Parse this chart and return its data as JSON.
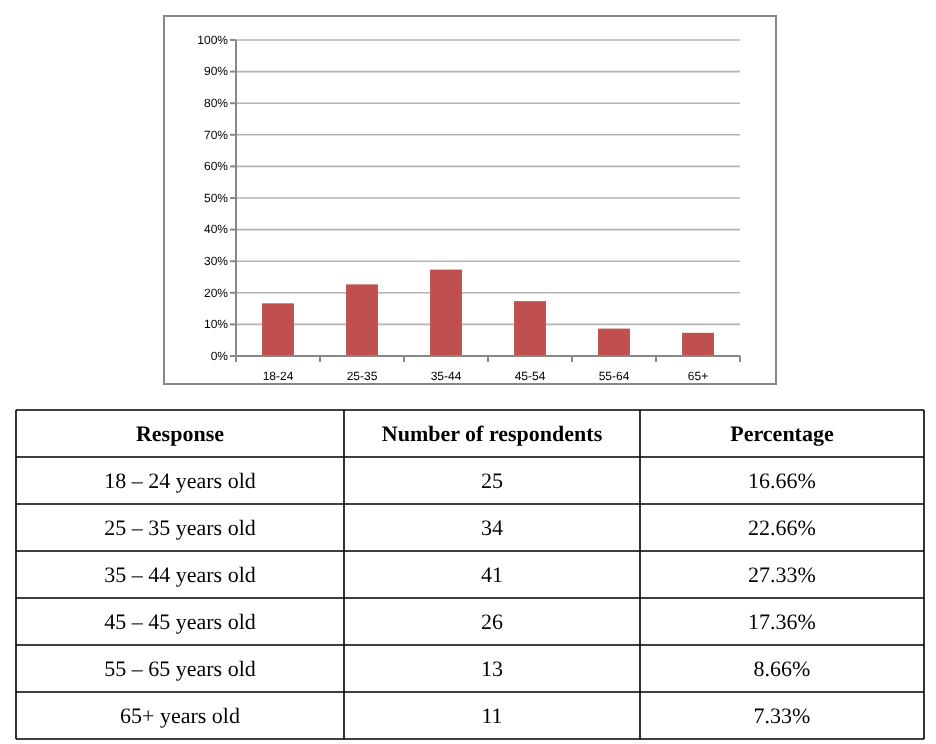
{
  "chart_data": [
    {
      "type": "bar",
      "categories": [
        "18-24",
        "25-35",
        "35-44",
        "45-54",
        "55-64",
        "65+"
      ],
      "values": [
        16.66,
        22.66,
        27.33,
        17.36,
        8.66,
        7.33
      ],
      "color": "#c0504d",
      "ylim": [
        0,
        100
      ],
      "yticks": [
        {
          "value": 0,
          "label": "0%"
        },
        {
          "value": 10,
          "label": "10%"
        },
        {
          "value": 20,
          "label": "20%"
        },
        {
          "value": 30,
          "label": "30%"
        },
        {
          "value": 40,
          "label": "40%"
        },
        {
          "value": 50,
          "label": "50%"
        },
        {
          "value": 60,
          "label": "60%"
        },
        {
          "value": 70,
          "label": "70%"
        },
        {
          "value": 80,
          "label": "80%"
        },
        {
          "value": 90,
          "label": "90%"
        },
        {
          "value": 100,
          "label": "100%"
        }
      ],
      "grid": "y"
    },
    {
      "type": "other",
      "xlabel": "Response",
      "categories": [
        "18 – 24 years old",
        "25 – 35 years old",
        "35 – 44 years old",
        "45 – 45 years old",
        "55 – 65 years old",
        "65+ years old"
      ],
      "data_labels": true,
      "series": [
        {
          "name": "Number of respondents",
          "values": [
            25,
            34,
            41,
            26,
            13,
            11
          ]
        },
        {
          "name": "Percentage",
          "values": [
            16.66,
            22.66,
            27.33,
            17.36,
            8.66,
            7.33
          ],
          "value_labels": [
            "16.66%",
            "22.66%",
            "27.33%",
            "17.36%",
            "8.66%",
            "7.33%"
          ]
        }
      ]
    }
  ]
}
